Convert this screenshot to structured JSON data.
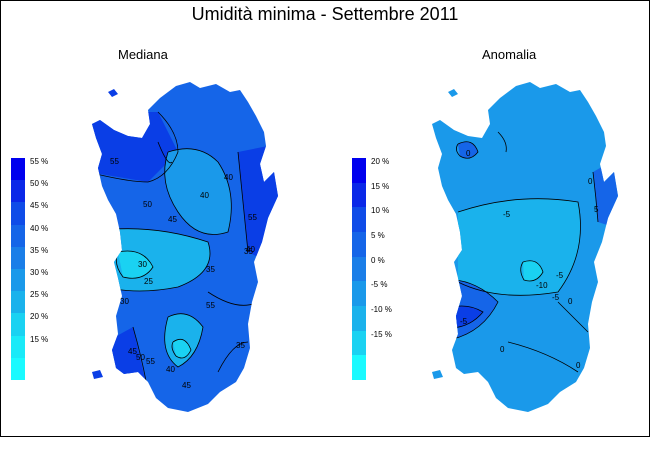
{
  "title": "Umidità minima - Settembre 2011",
  "maps": [
    {
      "subtitle": "Mediana",
      "legend": {
        "ticks": [
          "55 %",
          "50 %",
          "45 %",
          "40 %",
          "35 %",
          "30 %",
          "25 %",
          "20 %",
          "15 %"
        ],
        "colors": [
          "#0000ee",
          "#0a28e8",
          "#0f4ce8",
          "#1565e8",
          "#1a7ee8",
          "#1a99ea",
          "#1ab2ec",
          "#1ad2f2",
          "#1aeaf8",
          "#1afaff"
        ]
      },
      "contour_labels": [
        "55",
        "50",
        "45",
        "40",
        "40",
        "35",
        "35",
        "55",
        "40",
        "30",
        "25",
        "30",
        "45",
        "50",
        "55",
        "40",
        "35",
        "55",
        "45"
      ]
    },
    {
      "subtitle": "Anomalia",
      "legend": {
        "ticks": [
          "20 %",
          "15 %",
          "10 %",
          "5 %",
          "0 %",
          "-5 %",
          "-10 %",
          "-15 %"
        ],
        "colors": [
          "#0000ee",
          "#0a28e8",
          "#0f4ce8",
          "#1565e8",
          "#1a7ee8",
          "#1a99ea",
          "#1ab2ec",
          "#1ad2f2",
          "#1afaff"
        ]
      },
      "contour_labels": [
        "0",
        "-5",
        "-5",
        "0",
        "5",
        "0",
        "-10",
        "-5",
        "-5",
        "0",
        "0"
      ]
    }
  ],
  "colors": {
    "deep": "#0a3ee6",
    "mid": "#1565e8",
    "light": "#1a99ea",
    "pale": "#1ab2ec",
    "cyan": "#1ad2f2",
    "contour": "#000000"
  }
}
